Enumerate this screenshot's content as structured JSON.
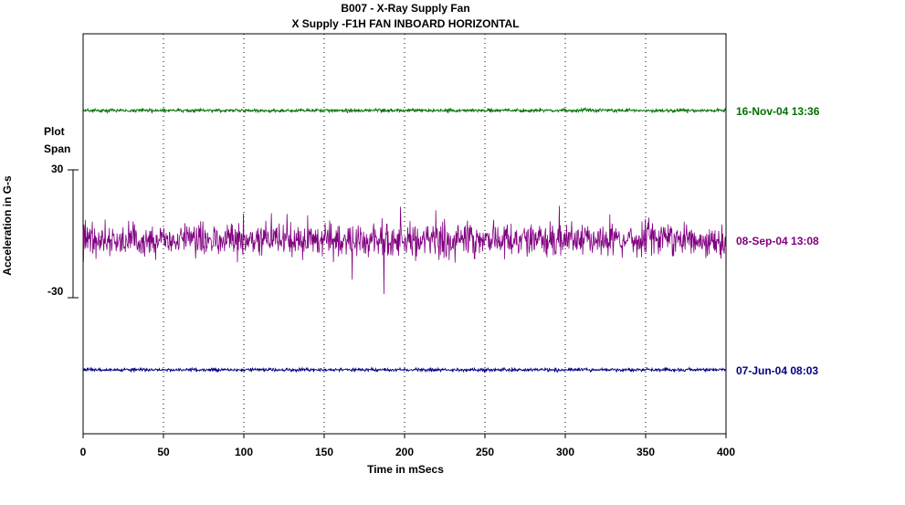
{
  "chart_data": {
    "type": "line",
    "title": "B007 - X-Ray Supply Fan",
    "subtitle": "X Supply  -F1H   FAN INBOARD HORIZONTAL",
    "xlabel": "Time in mSecs",
    "ylabel": "Acceleration in G-s",
    "xlim": [
      0,
      400
    ],
    "x_ticks": [
      "0",
      "50",
      "100",
      "150",
      "200",
      "250",
      "300",
      "350",
      "400"
    ],
    "plot_span_label": [
      "Plot",
      "Span"
    ],
    "plot_span_ticks": [
      "30",
      "-30"
    ],
    "plot_span": [
      -30,
      30
    ],
    "grid": "vertical dotted",
    "series": [
      {
        "name": "16-Nov-04  13:36",
        "color": "#007000",
        "amplitude_g": 1,
        "description_offset_rank": 1
      },
      {
        "name": "08-Sep-04  13:08",
        "color": "#800080",
        "amplitude_g": 10,
        "description_offset_rank": 2
      },
      {
        "name": "07-Jun-04  08:03",
        "color": "#000080",
        "amplitude_g": 1,
        "description_offset_rank": 3
      }
    ]
  }
}
